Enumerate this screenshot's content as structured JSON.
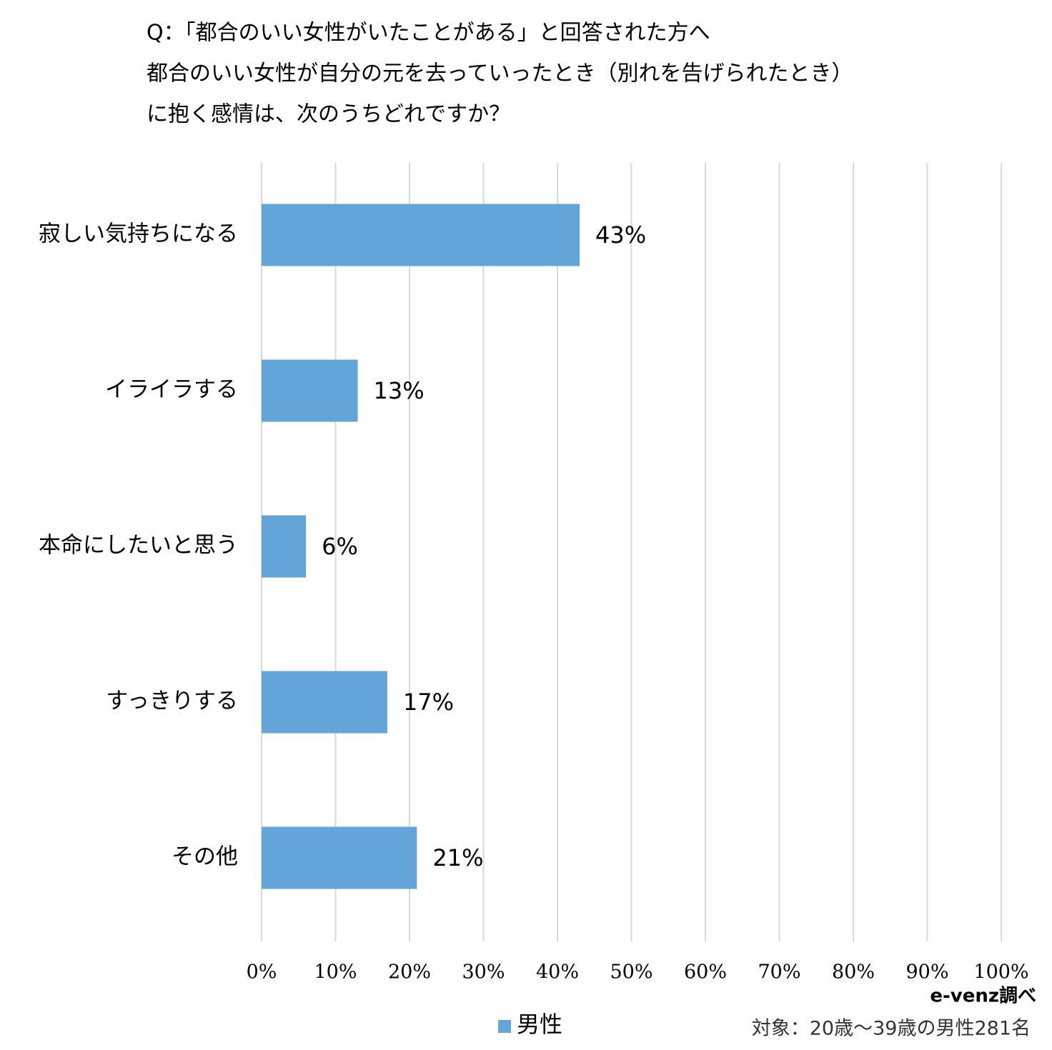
{
  "chart_data": {
    "type": "hbar",
    "title": [
      "Q：「都合のいい女性がいたことがある」と回答された方へ",
      "都合のいい女性が自分の元を去っていったとき（別れを告げられたとき）",
      "に抱く感情は、次のうちどれですか？"
    ],
    "categories": [
      "寂しい気持ちになる",
      "イライラする",
      "本命にしたいと思う",
      "すっきりする",
      "その他"
    ],
    "series": [
      {
        "name": "男性",
        "color": "#65a4d6",
        "values": [
          43,
          13,
          6,
          17,
          21
        ],
        "value_labels": [
          "43%",
          "13%",
          "6%",
          "17%",
          "21%"
        ]
      }
    ],
    "xlim": [
      0,
      100
    ],
    "xticks": [
      {
        "value": 0,
        "label": "0%"
      },
      {
        "value": 10,
        "label": "10%"
      },
      {
        "value": 20,
        "label": "20%"
      },
      {
        "value": 30,
        "label": "30%"
      },
      {
        "value": 40,
        "label": "40%"
      },
      {
        "value": 50,
        "label": "50%"
      },
      {
        "value": 60,
        "label": "60%"
      },
      {
        "value": 70,
        "label": "70%"
      },
      {
        "value": 80,
        "label": "80%"
      },
      {
        "value": 90,
        "label": "90%"
      },
      {
        "value": 100,
        "label": "100%"
      }
    ],
    "grid": true,
    "source": "e-venz調べ",
    "note": "対象：20歳〜39歳の男性281名"
  }
}
